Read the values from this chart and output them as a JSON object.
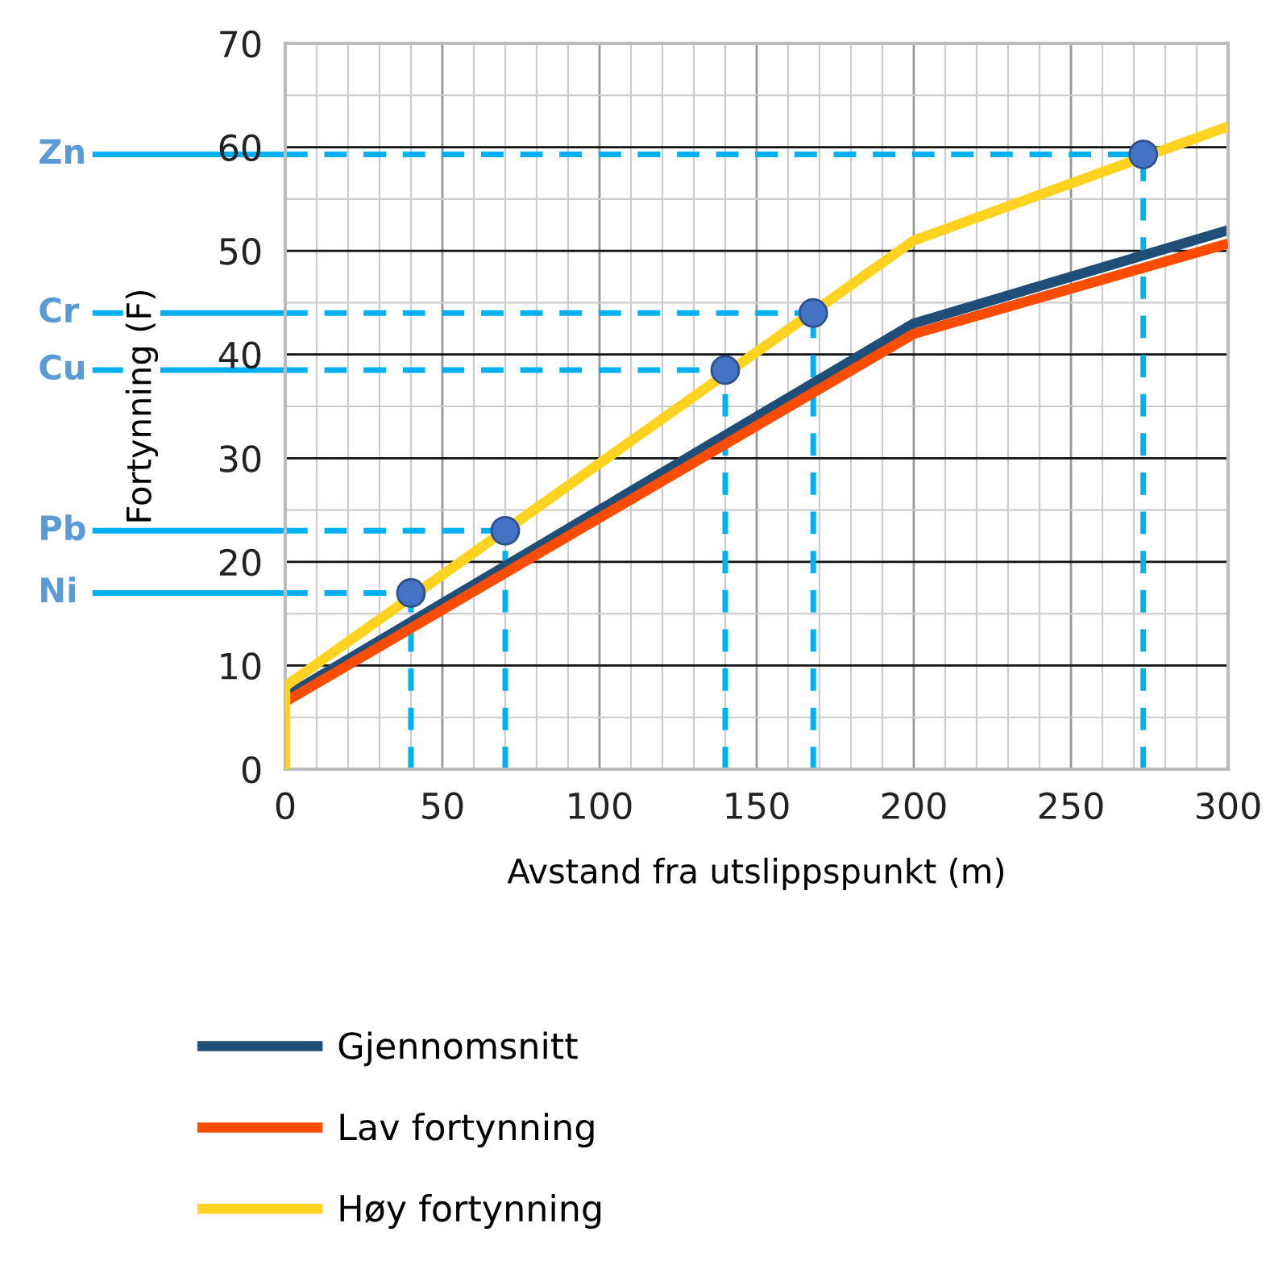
{
  "chart_data": {
    "type": "line",
    "xlabel": "Avstand fra utslippspunkt (m)",
    "ylabel": "Fortynning (F)",
    "xlim": [
      0,
      300
    ],
    "xticks": [
      0,
      50,
      100,
      150,
      200,
      250,
      300
    ],
    "ylim": [
      0,
      70
    ],
    "yticks": [
      0,
      10,
      20,
      30,
      40,
      50,
      60,
      70
    ],
    "grid": true,
    "legend": "bottom",
    "line_style": "solid",
    "marker": "none",
    "series": [
      {
        "name": "Gjennomsnitt",
        "color": "#1f4e79",
        "x": [
          0,
          200,
          300
        ],
        "values": [
          7,
          43,
          52
        ]
      },
      {
        "name": "Lav fortynning",
        "color": "#fc4c02",
        "x": [
          0,
          200,
          300
        ],
        "values": [
          6.5,
          42,
          50.7
        ]
      },
      {
        "name": "Høy fortynning",
        "color": "#ffd320",
        "x": [
          0,
          0,
          200,
          300
        ],
        "values": [
          0,
          8,
          51,
          62
        ]
      },
      {
        "type": "scatter",
        "color": "#4472c4",
        "marker": "circle",
        "x": [
          40,
          70,
          140,
          168,
          273
        ],
        "values": [
          17,
          23,
          38.5,
          44,
          59.3
        ]
      }
    ],
    "ref_lines": [
      {
        "axis": "y",
        "value": 17,
        "label": "Ni",
        "color": "#00b0f0",
        "line_style": "dashed"
      },
      {
        "axis": "y",
        "value": 23,
        "label": "Pb",
        "color": "#00b0f0",
        "line_style": "dashed"
      },
      {
        "axis": "y",
        "value": 38.5,
        "label": "Cu",
        "color": "#00b0f0",
        "line_style": "dashed"
      },
      {
        "axis": "y",
        "value": 44,
        "label": "Cr",
        "color": "#00b0f0",
        "line_style": "dashed"
      },
      {
        "axis": "y",
        "value": 59.3,
        "label": "Zn",
        "color": "#00b0f0",
        "line_style": "dashed"
      },
      {
        "axis": "x",
        "value": 40,
        "color": "#00b0f0",
        "line_style": "dashed"
      },
      {
        "axis": "x",
        "value": 70,
        "color": "#00b0f0",
        "line_style": "dashed"
      },
      {
        "axis": "x",
        "value": 140,
        "color": "#00b0f0",
        "line_style": "dashed"
      },
      {
        "axis": "x",
        "value": 168,
        "color": "#00b0f0",
        "line_style": "dashed"
      },
      {
        "axis": "x",
        "value": 273,
        "color": "#00b0f0",
        "line_style": "dashed"
      }
    ]
  }
}
